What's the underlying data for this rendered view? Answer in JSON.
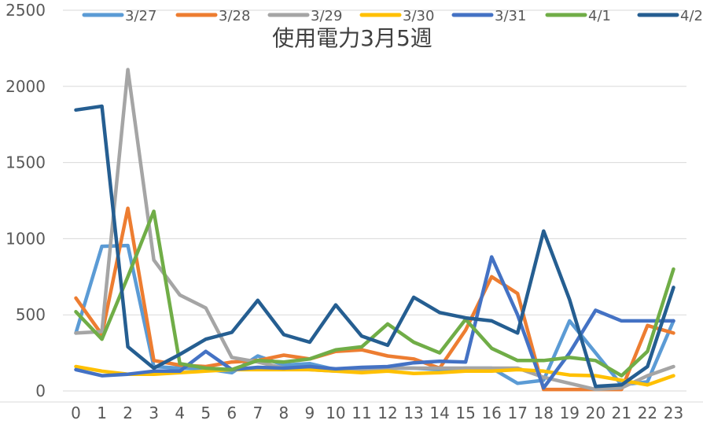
{
  "chart_data": {
    "type": "line",
    "title": "使用電力3月5週",
    "xlabel": "",
    "ylabel": "",
    "ylim": [
      0,
      2500
    ],
    "yticks": [
      0,
      500,
      1000,
      1500,
      2000,
      2500
    ],
    "grid": true,
    "legend_position": "top",
    "x": [
      "0",
      "1",
      "2",
      "3",
      "4",
      "5",
      "6",
      "7",
      "8",
      "9",
      "10",
      "11",
      "12",
      "13",
      "14",
      "15",
      "16",
      "17",
      "18",
      "19",
      "20",
      "21",
      "22",
      "23"
    ],
    "series": [
      {
        "name": "3/27",
        "color": "#5b9bd5",
        "values": [
          380,
          950,
          955,
          160,
          150,
          145,
          120,
          230,
          170,
          180,
          140,
          130,
          150,
          150,
          140,
          150,
          150,
          50,
          70,
          460,
          250,
          40,
          60,
          460
        ]
      },
      {
        "name": "3/28",
        "color": "#ed7d31",
        "values": [
          610,
          370,
          1200,
          200,
          170,
          160,
          190,
          200,
          235,
          210,
          260,
          270,
          230,
          210,
          150,
          400,
          750,
          640,
          10,
          10,
          10,
          10,
          430,
          380
        ]
      },
      {
        "name": "3/29",
        "color": "#a5a5a5",
        "values": [
          380,
          390,
          2110,
          860,
          630,
          545,
          220,
          190,
          150,
          140,
          130,
          140,
          150,
          150,
          150,
          150,
          150,
          150,
          90,
          50,
          10,
          20,
          100,
          160
        ]
      },
      {
        "name": "3/30",
        "color": "#ffc000",
        "values": [
          160,
          130,
          110,
          110,
          120,
          130,
          140,
          140,
          140,
          140,
          130,
          120,
          130,
          115,
          120,
          130,
          130,
          140,
          130,
          105,
          100,
          70,
          40,
          100
        ]
      },
      {
        "name": "3/31",
        "color": "#4472c4",
        "values": [
          140,
          100,
          110,
          130,
          130,
          260,
          140,
          155,
          150,
          160,
          145,
          155,
          160,
          185,
          195,
          190,
          880,
          500,
          20,
          250,
          530,
          460,
          460,
          460
        ]
      },
      {
        "name": "4/1",
        "color": "#70ad47",
        "values": [
          520,
          340,
          750,
          1180,
          180,
          150,
          140,
          200,
          190,
          210,
          270,
          290,
          440,
          320,
          250,
          470,
          280,
          200,
          200,
          220,
          200,
          100,
          260,
          800
        ]
      },
      {
        "name": "4/2",
        "color": "#255e91",
        "values": [
          1845,
          1870,
          290,
          150,
          240,
          340,
          385,
          595,
          370,
          320,
          565,
          360,
          300,
          615,
          515,
          480,
          460,
          380,
          1050,
          600,
          30,
          40,
          160,
          680
        ]
      }
    ]
  }
}
